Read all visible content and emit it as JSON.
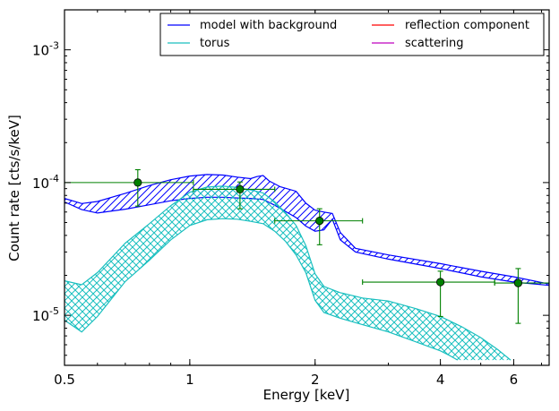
{
  "chart_data": {
    "type": "line",
    "xlabel": "Energy [keV]",
    "ylabel": "Count rate [cts/s/keV]",
    "x_scale": "log",
    "y_scale": "log",
    "xlim": [
      0.5,
      7.3
    ],
    "ylim": [
      4.2e-06,
      0.002
    ],
    "x_ticks": [
      {
        "value": 0.5,
        "label": "0.5"
      },
      {
        "value": 1,
        "label": "1"
      },
      {
        "value": 2,
        "label": "2"
      },
      {
        "value": 4,
        "label": "4"
      },
      {
        "value": 6,
        "label": "6"
      }
    ],
    "y_ticks": [
      {
        "value": 1e-05,
        "label_base": "10",
        "label_exp": "-5"
      },
      {
        "value": 0.0001,
        "label_base": "10",
        "label_exp": "-4"
      },
      {
        "value": 0.001,
        "label_base": "10",
        "label_exp": "-3"
      }
    ],
    "legend": {
      "position": "top-right",
      "columns": 2,
      "entries": [
        {
          "label": "model with background",
          "color": "#0000ff"
        },
        {
          "label": "torus",
          "color": "#19bfbf"
        },
        {
          "label": "reflection component",
          "color": "#ff0000"
        },
        {
          "label": "scattering",
          "color": "#bf00bf"
        }
      ]
    },
    "series": [
      {
        "name": "model with background",
        "color": "#0000ff",
        "hatch": "diagonal",
        "upper": [
          [
            0.5,
            7.6e-05
          ],
          [
            0.55,
            6.95e-05
          ],
          [
            0.6,
            7.2e-05
          ],
          [
            0.7,
            8.3e-05
          ],
          [
            0.8,
            9.5e-05
          ],
          [
            0.9,
            0.000105
          ],
          [
            1.0,
            0.000112
          ],
          [
            1.1,
            0.000115
          ],
          [
            1.2,
            0.000114
          ],
          [
            1.3,
            0.00011
          ],
          [
            1.4,
            0.000107
          ],
          [
            1.45,
            0.000111
          ],
          [
            1.5,
            0.000113
          ],
          [
            1.55,
            0.000103
          ],
          [
            1.65,
            9.3e-05
          ],
          [
            1.8,
            8.6e-05
          ],
          [
            1.9,
            7e-05
          ],
          [
            2.0,
            6.2e-05
          ],
          [
            2.1,
            6e-05
          ],
          [
            2.2,
            5.85e-05
          ],
          [
            2.3,
            4.2e-05
          ],
          [
            2.5,
            3.2e-05
          ],
          [
            3.0,
            2.85e-05
          ],
          [
            4.0,
            2.45e-05
          ],
          [
            5.0,
            2.15e-05
          ],
          [
            6.0,
            1.95e-05
          ],
          [
            7.3,
            1.72e-05
          ]
        ],
        "lower": [
          [
            0.5,
            7.15e-05
          ],
          [
            0.55,
            6.25e-05
          ],
          [
            0.6,
            5.9e-05
          ],
          [
            0.7,
            6.3e-05
          ],
          [
            0.8,
            6.8e-05
          ],
          [
            0.9,
            7.3e-05
          ],
          [
            1.0,
            7.6e-05
          ],
          [
            1.1,
            7.75e-05
          ],
          [
            1.2,
            7.75e-05
          ],
          [
            1.3,
            7.65e-05
          ],
          [
            1.4,
            7.6e-05
          ],
          [
            1.5,
            7.45e-05
          ],
          [
            1.6,
            6.75e-05
          ],
          [
            1.8,
            5.45e-05
          ],
          [
            1.9,
            4.7e-05
          ],
          [
            2.0,
            4.3e-05
          ],
          [
            2.1,
            4.4e-05
          ],
          [
            2.2,
            5.3e-05
          ],
          [
            2.3,
            3.7e-05
          ],
          [
            2.5,
            3e-05
          ],
          [
            3.0,
            2.65e-05
          ],
          [
            4.0,
            2.25e-05
          ],
          [
            5.0,
            1.95e-05
          ],
          [
            6.0,
            1.78e-05
          ],
          [
            7.3,
            1.68e-05
          ]
        ]
      },
      {
        "name": "torus",
        "color": "#19bfbf",
        "hatch": "crosshatch",
        "upper": [
          [
            0.5,
            1.82e-05
          ],
          [
            0.55,
            1.7e-05
          ],
          [
            0.6,
            2.1e-05
          ],
          [
            0.7,
            3.5e-05
          ],
          [
            0.8,
            4.9e-05
          ],
          [
            0.9,
            6.7e-05
          ],
          [
            1.0,
            8.45e-05
          ],
          [
            1.1,
            9.25e-05
          ],
          [
            1.2,
            9.4e-05
          ],
          [
            1.3,
            9.2e-05
          ],
          [
            1.4,
            8.8e-05
          ],
          [
            1.5,
            8.35e-05
          ],
          [
            1.6,
            7.15e-05
          ],
          [
            1.7,
            5.9e-05
          ],
          [
            1.8,
            4.75e-05
          ],
          [
            1.9,
            3.35e-05
          ],
          [
            2.0,
            2.05e-05
          ],
          [
            2.1,
            1.65e-05
          ],
          [
            2.3,
            1.48e-05
          ],
          [
            2.6,
            1.35e-05
          ],
          [
            3.0,
            1.28e-05
          ],
          [
            3.5,
            1.12e-05
          ],
          [
            4.0,
            9.8e-06
          ],
          [
            4.5,
            8.2e-06
          ],
          [
            5.0,
            6.8e-06
          ],
          [
            5.5,
            5.5e-06
          ],
          [
            5.9,
            4.6e-06
          ]
        ],
        "lower": [
          [
            0.5,
            9.2e-06
          ],
          [
            0.55,
            7.5e-06
          ],
          [
            0.6,
            9.8e-06
          ],
          [
            0.7,
            1.8e-05
          ],
          [
            0.8,
            2.6e-05
          ],
          [
            0.9,
            3.7e-05
          ],
          [
            1.0,
            4.75e-05
          ],
          [
            1.1,
            5.25e-05
          ],
          [
            1.2,
            5.35e-05
          ],
          [
            1.3,
            5.3e-05
          ],
          [
            1.4,
            5.1e-05
          ],
          [
            1.5,
            4.9e-05
          ],
          [
            1.6,
            4.3e-05
          ],
          [
            1.7,
            3.6e-05
          ],
          [
            1.8,
            2.85e-05
          ],
          [
            1.9,
            2.1e-05
          ],
          [
            2.0,
            1.3e-05
          ],
          [
            2.1,
            1.05e-05
          ],
          [
            2.3,
            9.5e-06
          ],
          [
            2.6,
            8.5e-06
          ],
          [
            3.0,
            7.5e-06
          ],
          [
            3.5,
            6.3e-06
          ],
          [
            4.0,
            5.4e-06
          ],
          [
            4.2,
            5e-06
          ],
          [
            4.4,
            4.6e-06
          ]
        ]
      }
    ],
    "data_points": {
      "color": "#008000",
      "points": [
        {
          "x": 0.75,
          "y": 0.0001,
          "x_lo": 0.5,
          "x_hi": 1.02,
          "y_lo": 6.65e-05,
          "y_hi": 0.000125
        },
        {
          "x": 1.32,
          "y": 8.9e-05,
          "x_lo": 1.02,
          "x_hi": 1.6,
          "y_lo": 6.35e-05,
          "y_hi": 0.000101
        },
        {
          "x": 2.05,
          "y": 5.15e-05,
          "x_lo": 1.6,
          "x_hi": 2.6,
          "y_lo": 3.4e-05,
          "y_hi": 6.35e-05
        },
        {
          "x": 4.0,
          "y": 1.78e-05,
          "x_lo": 2.6,
          "x_hi": 5.4,
          "y_lo": 9.8e-06,
          "y_hi": 2.15e-05
        },
        {
          "x": 6.15,
          "y": 1.75e-05,
          "x_lo": 5.4,
          "x_hi": 7.3,
          "y_lo": 8.7e-06,
          "y_hi": 2.25e-05
        }
      ]
    }
  }
}
